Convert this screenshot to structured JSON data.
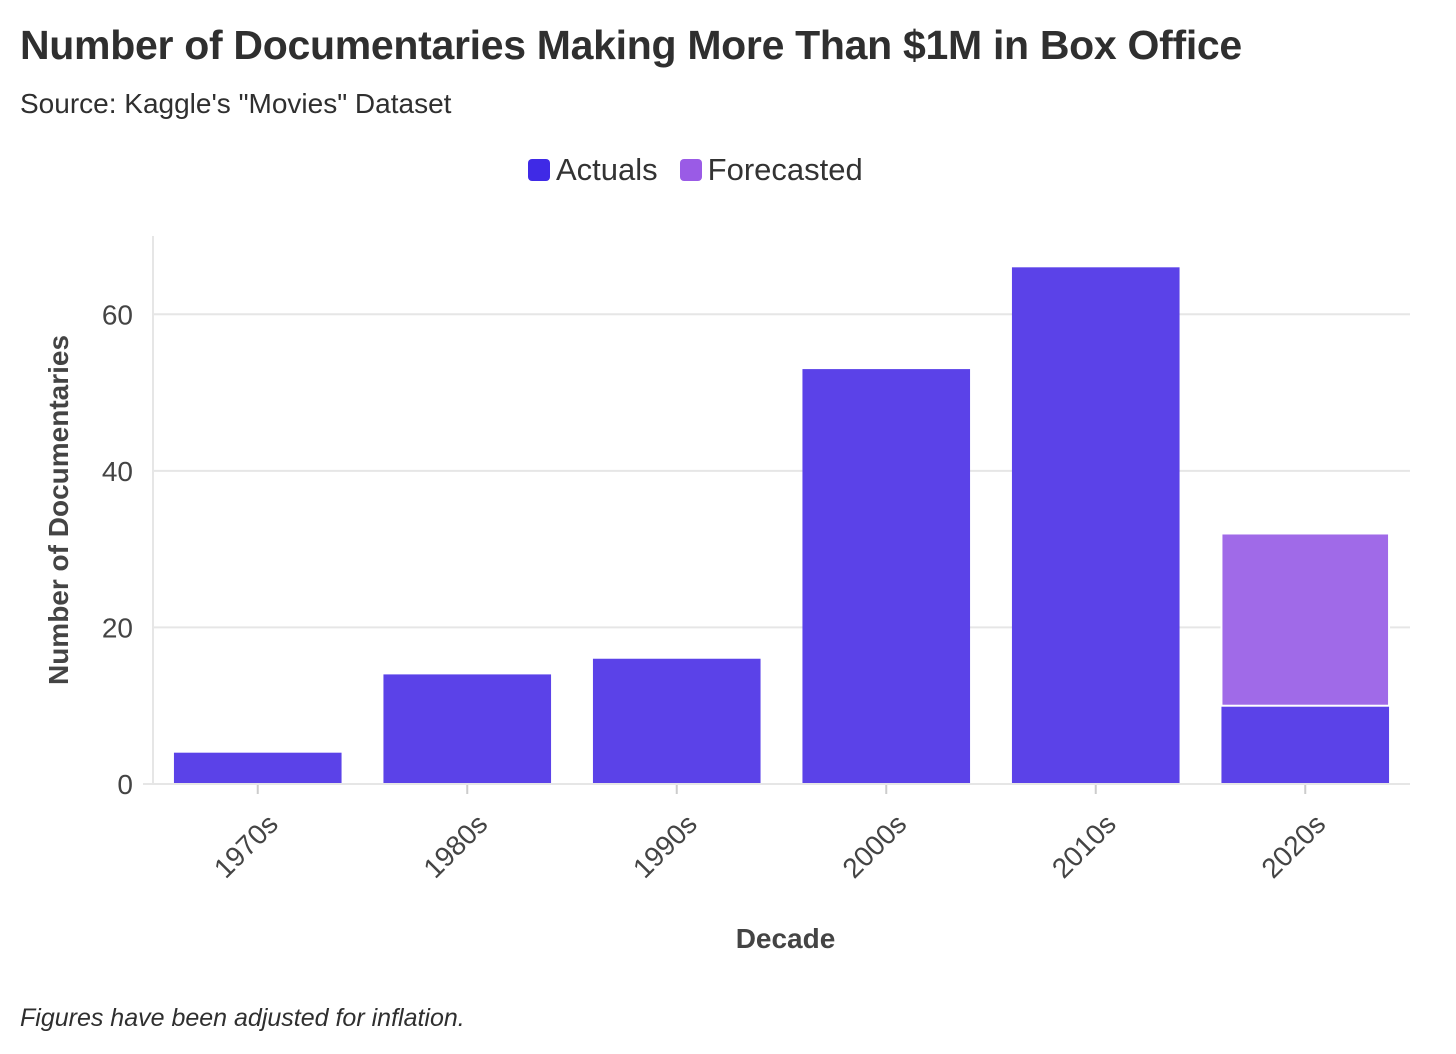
{
  "chart_data": {
    "type": "bar",
    "stacked": true,
    "title": "Number of Documentaries Making More Than $1M in Box Office",
    "subtitle": "Source: Kaggle's \"Movies\" Dataset",
    "xlabel": "Decade",
    "ylabel": "Number of Documentaries",
    "categories": [
      "1970s",
      "1980s",
      "1990s",
      "2000s",
      "2010s",
      "2020s"
    ],
    "series": [
      {
        "name": "Actuals",
        "color": "#5b42e8",
        "values": [
          4,
          14,
          16,
          53,
          66,
          10
        ]
      },
      {
        "name": "Forecasted",
        "color": "#a06ae8",
        "values": [
          0,
          0,
          0,
          0,
          0,
          22
        ]
      }
    ],
    "ylim": [
      0,
      70
    ],
    "yticks": [
      0,
      20,
      40,
      60
    ],
    "grid": true,
    "legend_position": "top-center",
    "footnote": "Figures have been adjusted for inflation."
  }
}
